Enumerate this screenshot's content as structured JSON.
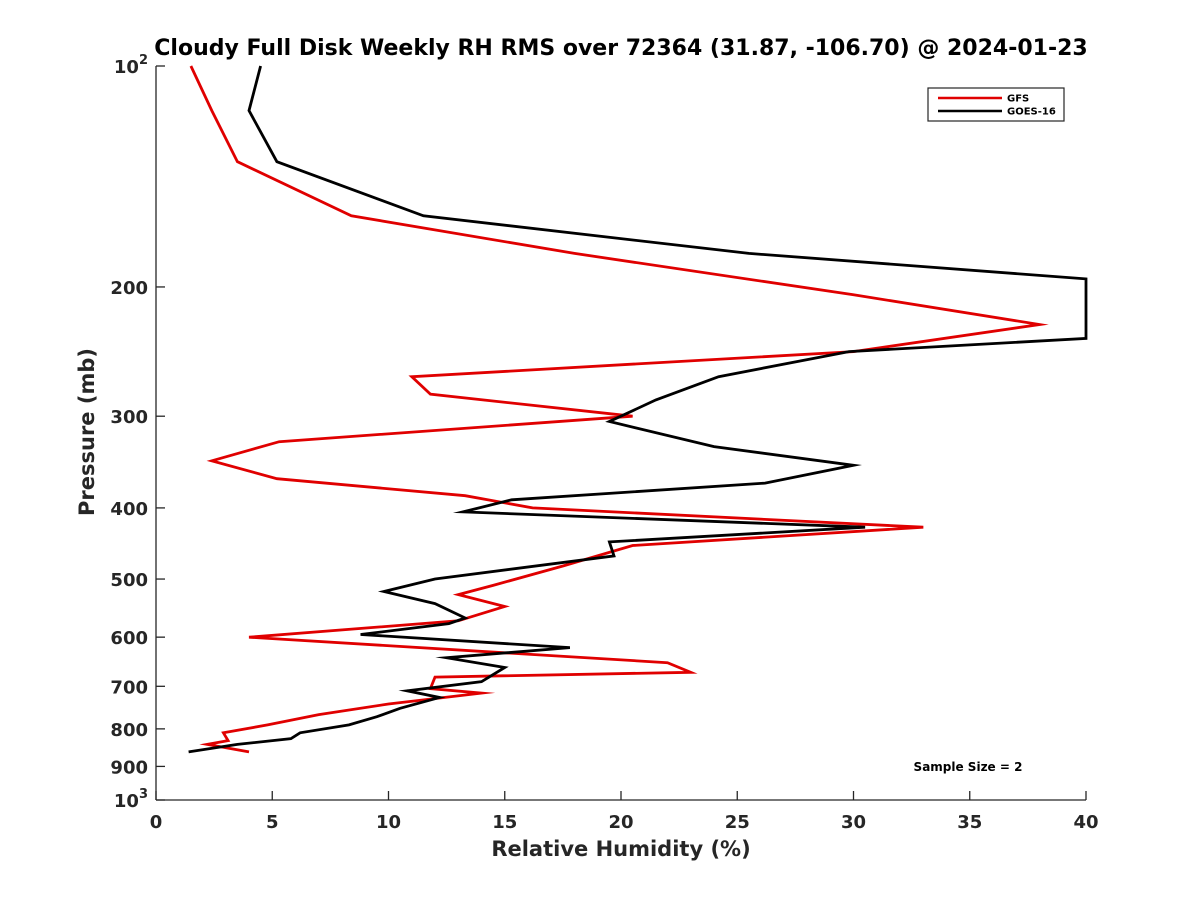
{
  "chart_data": {
    "type": "line",
    "title": "Cloudy Full Disk Weekly RH RMS over 72364 (31.87, -106.70) @ 2024-01-23",
    "xlabel": "Relative Humidity (%)",
    "ylabel": "Pressure (mb)",
    "xlim": [
      0,
      40
    ],
    "ylim": [
      100,
      1000
    ],
    "y_scale": "log",
    "y_reversed": true,
    "x_ticks": [
      0,
      5,
      10,
      15,
      20,
      25,
      30,
      35,
      40
    ],
    "x_tick_labels": [
      "0",
      "5",
      "10",
      "15",
      "20",
      "25",
      "30",
      "35",
      "40"
    ],
    "y_ticks": [
      100,
      200,
      300,
      400,
      500,
      600,
      700,
      800,
      900,
      1000
    ],
    "y_tick_labels": [
      {
        "base": "10",
        "exp": "2"
      },
      {
        "base": "200",
        "exp": ""
      },
      {
        "base": "300",
        "exp": ""
      },
      {
        "base": "400",
        "exp": ""
      },
      {
        "base": "500",
        "exp": ""
      },
      {
        "base": "600",
        "exp": ""
      },
      {
        "base": "700",
        "exp": ""
      },
      {
        "base": "800",
        "exp": ""
      },
      {
        "base": "900",
        "exp": ""
      },
      {
        "base": "10",
        "exp": "3"
      }
    ],
    "grid": false,
    "legend_position": "top-right",
    "annotation": "Sample Size = 2",
    "series": [
      {
        "name": "GFS",
        "color": "#e00000",
        "points": [
          [
            1.5,
            100
          ],
          [
            2.4,
            115
          ],
          [
            3.5,
            135
          ],
          [
            8.4,
            160
          ],
          [
            18.0,
            180
          ],
          [
            30.0,
            205
          ],
          [
            38.0,
            225
          ],
          [
            30.0,
            245
          ],
          [
            11.0,
            265
          ],
          [
            11.8,
            280
          ],
          [
            20.5,
            300
          ],
          [
            5.3,
            325
          ],
          [
            2.4,
            345
          ],
          [
            5.2,
            365
          ],
          [
            13.3,
            385
          ],
          [
            16.2,
            400
          ],
          [
            33.0,
            425
          ],
          [
            20.5,
            450
          ],
          [
            17.5,
            480
          ],
          [
            14.5,
            510
          ],
          [
            13.0,
            525
          ],
          [
            15.0,
            545
          ],
          [
            13.0,
            570
          ],
          [
            4.0,
            600
          ],
          [
            22.0,
            650
          ],
          [
            23.0,
            670
          ],
          [
            12.0,
            680
          ],
          [
            11.8,
            705
          ],
          [
            14.0,
            715
          ],
          [
            10.0,
            740
          ],
          [
            7.0,
            765
          ],
          [
            4.8,
            790
          ],
          [
            2.9,
            810
          ],
          [
            3.1,
            830
          ],
          [
            2.2,
            840
          ],
          [
            4.0,
            860
          ]
        ]
      },
      {
        "name": "GOES-16",
        "color": "#000000",
        "points": [
          [
            4.5,
            100
          ],
          [
            4.0,
            115
          ],
          [
            5.2,
            135
          ],
          [
            11.5,
            160
          ],
          [
            25.5,
            180
          ],
          [
            40.0,
            195
          ],
          [
            40.0,
            235
          ],
          [
            29.8,
            245
          ],
          [
            24.2,
            265
          ],
          [
            21.5,
            285
          ],
          [
            19.5,
            305
          ],
          [
            24.0,
            330
          ],
          [
            30.0,
            350
          ],
          [
            26.2,
            370
          ],
          [
            15.3,
            390
          ],
          [
            13.2,
            405
          ],
          [
            30.5,
            425
          ],
          [
            19.5,
            445
          ],
          [
            19.7,
            465
          ],
          [
            12.0,
            500
          ],
          [
            9.8,
            520
          ],
          [
            12.0,
            540
          ],
          [
            13.3,
            565
          ],
          [
            12.6,
            575
          ],
          [
            8.8,
            595
          ],
          [
            17.8,
            620
          ],
          [
            12.5,
            640
          ],
          [
            15.0,
            660
          ],
          [
            14.0,
            690
          ],
          [
            10.8,
            710
          ],
          [
            12.2,
            725
          ],
          [
            10.5,
            750
          ],
          [
            9.5,
            770
          ],
          [
            8.3,
            790
          ],
          [
            6.2,
            810
          ],
          [
            5.8,
            825
          ],
          [
            3.5,
            840
          ],
          [
            1.4,
            860
          ]
        ]
      }
    ]
  }
}
